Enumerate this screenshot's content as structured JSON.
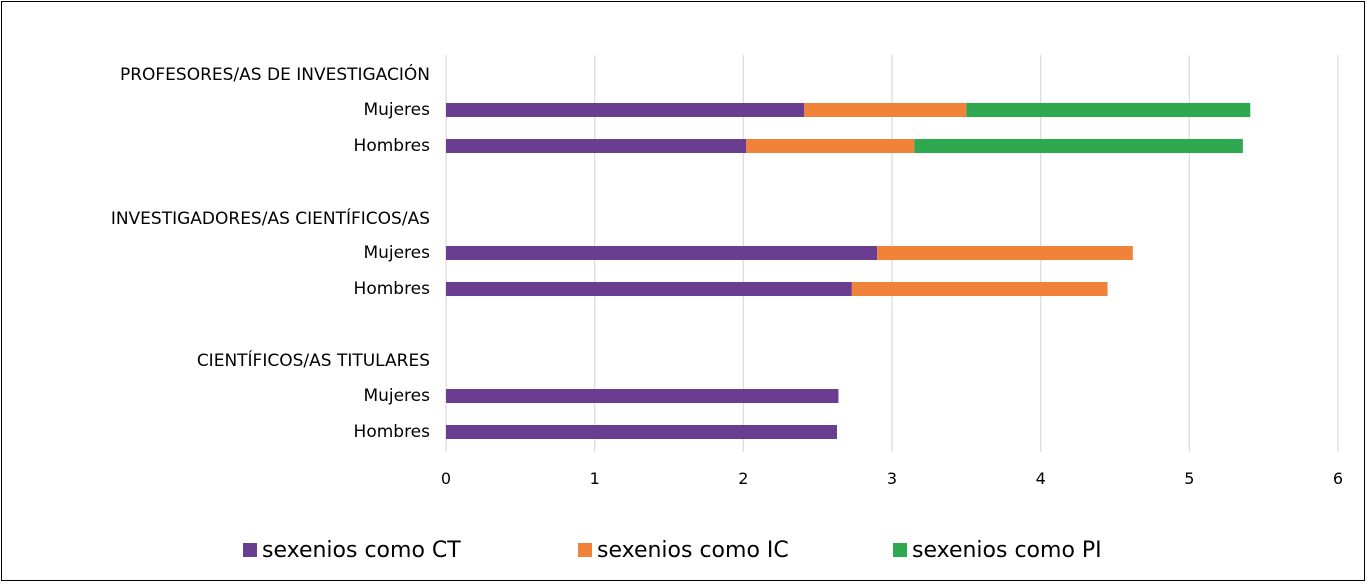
{
  "chart_data": {
    "type": "bar",
    "orientation": "horizontal",
    "stacked": true,
    "groups": [
      {
        "label": "PROFESORES/AS DE INVESTIGACIÓN",
        "rows": [
          {
            "label": "Mujeres",
            "values": [
              2.41,
              1.09,
              1.91
            ]
          },
          {
            "label": "Hombres",
            "values": [
              2.02,
              1.13,
              2.21
            ]
          }
        ]
      },
      {
        "label": "INVESTIGADORES/AS CIENTÍFICOS/AS",
        "rows": [
          {
            "label": "Mujeres",
            "values": [
              2.9,
              1.72,
              0
            ]
          },
          {
            "label": "Hombres",
            "values": [
              2.73,
              1.72,
              0
            ]
          }
        ]
      },
      {
        "label": "CIENTÍFICOS/AS TITULARES",
        "rows": [
          {
            "label": "Mujeres",
            "values": [
              2.64,
              0,
              0
            ]
          },
          {
            "label": "Hombres",
            "values": [
              2.63,
              0,
              0
            ]
          }
        ]
      }
    ],
    "series": [
      {
        "name": "sexenios como CT",
        "color": "#6a3d91"
      },
      {
        "name": "sexenios como IC",
        "color": "#f0823a"
      },
      {
        "name": "sexenios como PI",
        "color": "#2ea84f"
      }
    ],
    "xlim": [
      0,
      6
    ],
    "xticks": [
      "0",
      "1",
      "2",
      "3",
      "4",
      "5",
      "6"
    ],
    "grid": true,
    "legend_position": "bottom"
  }
}
